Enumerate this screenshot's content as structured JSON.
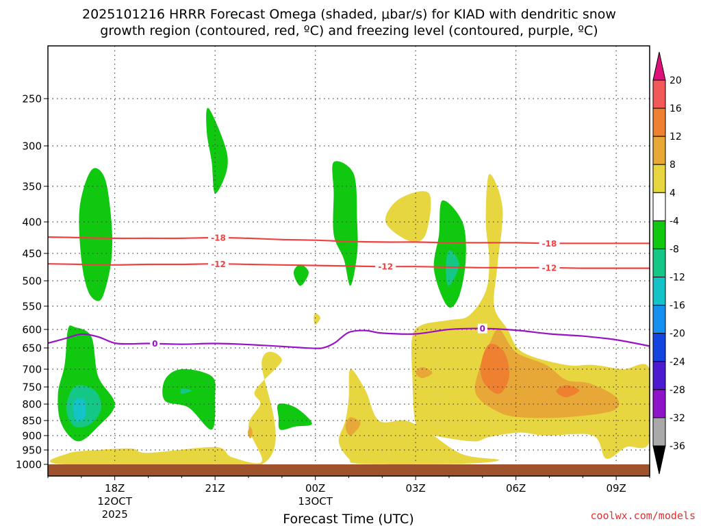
{
  "chart_data": {
    "type": "contour",
    "title_line1": "2025101216 HRRR Forecast Omega (shaded, μbar/s) for KIAD with dendritic snow",
    "title_line2": "growth region (contoured, red, ºC) and freezing level (contoured, purple, ºC)",
    "xlabel": "Forecast Time (UTC)",
    "x_ticks": [
      {
        "hour": 18,
        "label": "18Z",
        "sub1": "12OCT",
        "sub2": "2025"
      },
      {
        "hour": 21,
        "label": "21Z"
      },
      {
        "hour": 24,
        "label": "00Z",
        "sub1": "13OCT"
      },
      {
        "hour": 27,
        "label": "03Z"
      },
      {
        "hour": 30,
        "label": "06Z"
      },
      {
        "hour": 33,
        "label": "09Z"
      }
    ],
    "x_range_hours": [
      16,
      34
    ],
    "y_levels": [
      250,
      300,
      350,
      400,
      450,
      500,
      550,
      600,
      650,
      700,
      750,
      800,
      850,
      900,
      950,
      1000
    ],
    "y_range_mb": [
      200,
      1020
    ],
    "colorbar": {
      "labels": [
        "20",
        "16",
        "12",
        "8",
        "4",
        "-4",
        "-8",
        "-12",
        "-16",
        "-20",
        "-24",
        "-28",
        "-32",
        "-36"
      ],
      "colors": [
        "#f25a5a",
        "#ee8030",
        "#e7a838",
        "#e8d640",
        "#ffffff",
        "#0fc80f",
        "#15c786",
        "#14c3c8",
        "#1590f0",
        "#1545e0",
        "#4c1ad0",
        "#8f13c8",
        "#a9a9a9"
      ],
      "top_arrow_color": "#e0107a",
      "bottom_arrow_color": "#000000"
    },
    "colors": {
      "ground": "#a0522d",
      "dgz_line": "#f04040",
      "freezing_line": "#9a10c8",
      "grid": "#444444"
    },
    "dgz_contours": [
      {
        "label": "-18",
        "points": [
          [
            16,
            424
          ],
          [
            17,
            425
          ],
          [
            18,
            426
          ],
          [
            19,
            426
          ],
          [
            20,
            426
          ],
          [
            21,
            425
          ],
          [
            22,
            426
          ],
          [
            23,
            428
          ],
          [
            24,
            429
          ],
          [
            25,
            431
          ],
          [
            26,
            432
          ],
          [
            27,
            432
          ],
          [
            28,
            433
          ],
          [
            29,
            433
          ],
          [
            30,
            433
          ],
          [
            31,
            434
          ],
          [
            32,
            434
          ],
          [
            33,
            434
          ],
          [
            34,
            434
          ]
        ],
        "label_hours": [
          21.1,
          31.0
        ]
      },
      {
        "label": "-12",
        "points": [
          [
            16,
            469
          ],
          [
            17,
            470
          ],
          [
            18,
            471
          ],
          [
            19,
            470
          ],
          [
            20,
            470
          ],
          [
            21,
            469
          ],
          [
            22,
            470
          ],
          [
            23,
            471
          ],
          [
            24,
            472
          ],
          [
            25,
            473
          ],
          [
            26,
            474
          ],
          [
            27,
            474
          ],
          [
            28,
            475
          ],
          [
            29,
            476
          ],
          [
            30,
            476
          ],
          [
            31,
            476
          ],
          [
            32,
            477
          ],
          [
            33,
            477
          ],
          [
            34,
            477
          ]
        ],
        "label_hours": [
          21.1,
          26.1,
          31.0
        ]
      }
    ],
    "freezing_contour": {
      "label": "0",
      "points": [
        [
          16,
          637
        ],
        [
          16.5,
          625
        ],
        [
          17,
          613
        ],
        [
          17.5,
          620
        ],
        [
          18,
          637
        ],
        [
          18.5,
          639
        ],
        [
          19,
          638
        ],
        [
          20,
          640
        ],
        [
          21,
          638
        ],
        [
          22,
          641
        ],
        [
          23,
          646
        ],
        [
          24,
          651
        ],
        [
          24.3,
          648
        ],
        [
          24.6,
          635
        ],
        [
          25,
          608
        ],
        [
          25.5,
          603
        ],
        [
          26,
          610
        ],
        [
          27,
          612
        ],
        [
          28,
          600
        ],
        [
          29,
          598
        ],
        [
          30,
          602
        ],
        [
          31,
          612
        ],
        [
          32,
          618
        ],
        [
          33,
          628
        ],
        [
          34,
          645
        ]
      ],
      "label_hours": [
        19.2,
        29.0
      ]
    },
    "omega_regions": [
      {
        "value": -6,
        "points": [
          [
            17.3,
            330
          ],
          [
            17.7,
            340
          ],
          [
            17.9,
            400
          ],
          [
            17.9,
            460
          ],
          [
            17.7,
            520
          ],
          [
            17.5,
            540
          ],
          [
            17.2,
            520
          ],
          [
            17.0,
            460
          ],
          [
            16.95,
            380
          ]
        ]
      },
      {
        "value": -6,
        "points": [
          [
            20.8,
            260
          ],
          [
            21.3,
            300
          ],
          [
            21.35,
            330
          ],
          [
            21.0,
            360
          ],
          [
            20.9,
            320
          ],
          [
            20.75,
            285
          ]
        ]
      },
      {
        "value": -6,
        "points": [
          [
            23.55,
            470
          ],
          [
            23.8,
            485
          ],
          [
            23.55,
            510
          ],
          [
            23.35,
            485
          ]
        ]
      },
      {
        "value": -6,
        "points": [
          [
            24.55,
            320
          ],
          [
            25.15,
            335
          ],
          [
            25.25,
            400
          ],
          [
            25.25,
            450
          ],
          [
            25.05,
            510
          ],
          [
            24.85,
            460
          ],
          [
            24.55,
            420
          ],
          [
            24.55,
            360
          ]
        ]
      },
      {
        "value": -6,
        "points": [
          [
            27.8,
            370
          ],
          [
            28.4,
            400
          ],
          [
            28.5,
            460
          ],
          [
            28.3,
            530
          ],
          [
            27.95,
            550
          ],
          [
            27.55,
            480
          ],
          [
            27.7,
            420
          ]
        ]
      },
      {
        "value": -6,
        "points": [
          [
            16.6,
            600
          ],
          [
            16.8,
            595
          ],
          [
            17.3,
            620
          ],
          [
            17.5,
            720
          ],
          [
            18.0,
            800
          ],
          [
            17.5,
            870
          ],
          [
            16.9,
            920
          ],
          [
            16.4,
            860
          ],
          [
            16.3,
            770
          ],
          [
            16.5,
            690
          ]
        ]
      },
      {
        "value": -6,
        "points": [
          [
            19.5,
            730
          ],
          [
            20.0,
            700
          ],
          [
            20.9,
            720
          ],
          [
            21.0,
            780
          ],
          [
            20.9,
            880
          ],
          [
            20.2,
            810
          ],
          [
            19.5,
            790
          ]
        ]
      },
      {
        "value": -6,
        "points": [
          [
            22.9,
            800
          ],
          [
            23.4,
            810
          ],
          [
            23.9,
            860
          ],
          [
            23.4,
            870
          ],
          [
            22.95,
            880
          ],
          [
            22.9,
            840
          ]
        ]
      },
      {
        "value": -10,
        "points": [
          [
            28.0,
            445
          ],
          [
            28.3,
            470
          ],
          [
            28.0,
            510
          ],
          [
            27.9,
            480
          ]
        ]
      },
      {
        "value": -10,
        "points": [
          [
            16.9,
            745
          ],
          [
            17.4,
            760
          ],
          [
            17.6,
            810
          ],
          [
            17.3,
            860
          ],
          [
            16.8,
            870
          ],
          [
            16.55,
            820
          ],
          [
            16.65,
            770
          ]
        ]
      },
      {
        "value": -10,
        "points": [
          [
            20.0,
            755
          ],
          [
            20.3,
            760
          ],
          [
            20.0,
            770
          ]
        ]
      },
      {
        "value": -14,
        "points": [
          [
            16.85,
            785
          ],
          [
            17.1,
            790
          ],
          [
            17.1,
            840
          ],
          [
            16.85,
            850
          ],
          [
            16.75,
            810
          ]
        ]
      },
      {
        "value": 6,
        "points": [
          [
            24.0,
            565
          ],
          [
            24.15,
            575
          ],
          [
            24.0,
            590
          ],
          [
            23.95,
            577
          ]
        ]
      },
      {
        "value": 6,
        "points": [
          [
            26.1,
            400
          ],
          [
            26.5,
            368
          ],
          [
            27.4,
            360
          ],
          [
            27.3,
            420
          ],
          [
            26.8,
            430
          ]
        ]
      },
      {
        "value": 6,
        "points": [
          [
            29.1,
            400
          ],
          [
            29.2,
            335
          ],
          [
            29.6,
            380
          ],
          [
            29.45,
            470
          ],
          [
            29.35,
            550
          ],
          [
            29.75,
            600
          ],
          [
            30.2,
            660
          ],
          [
            31.5,
            690
          ],
          [
            32.3,
            690
          ],
          [
            33.2,
            700
          ],
          [
            34,
            700
          ],
          [
            34,
            920
          ],
          [
            33.3,
            940
          ],
          [
            32.7,
            980
          ],
          [
            32.3,
            900
          ],
          [
            30.9,
            900
          ],
          [
            30.1,
            890
          ],
          [
            29.2,
            905
          ],
          [
            28.7,
            920
          ],
          [
            27.4,
            895
          ],
          [
            27.0,
            860
          ],
          [
            26.9,
            720
          ],
          [
            26.9,
            620
          ],
          [
            27.2,
            590
          ],
          [
            28.0,
            580
          ],
          [
            28.6,
            570
          ],
          [
            29.1,
            520
          ],
          [
            29.2,
            460
          ]
        ]
      },
      {
        "value": 6,
        "points": [
          [
            22.4,
            680
          ],
          [
            23.0,
            680
          ],
          [
            22.2,
            760
          ],
          [
            22.35,
            800
          ],
          [
            22.0,
            870
          ],
          [
            22.4,
            990
          ],
          [
            21.5,
            975
          ],
          [
            21.0,
            940
          ],
          [
            19.0,
            960
          ],
          [
            18.5,
            945
          ],
          [
            17.5,
            950
          ],
          [
            16.6,
            962
          ],
          [
            16.5,
            1000
          ],
          [
            22.4,
            1000
          ]
        ]
      },
      {
        "value": 6,
        "points": [
          [
            25.05,
            700
          ],
          [
            25.5,
            760
          ],
          [
            25.9,
            850
          ],
          [
            26.7,
            850
          ],
          [
            27.4,
            890
          ],
          [
            28.4,
            965
          ],
          [
            29.5,
            985
          ],
          [
            28.3,
            998
          ],
          [
            25.4,
            998
          ],
          [
            25.0,
            980
          ],
          [
            24.7,
            920
          ],
          [
            24.9,
            850
          ],
          [
            25.0,
            780
          ]
        ]
      },
      {
        "value": 10,
        "points": [
          [
            29.5,
            600
          ],
          [
            30.0,
            660
          ],
          [
            30.9,
            690
          ],
          [
            31.5,
            730
          ],
          [
            32.2,
            740
          ],
          [
            33.0,
            780
          ],
          [
            32.9,
            820
          ],
          [
            31.5,
            840
          ],
          [
            30.1,
            840
          ],
          [
            29.4,
            820
          ],
          [
            28.8,
            770
          ],
          [
            28.9,
            700
          ],
          [
            29.2,
            640
          ]
        ]
      },
      {
        "value": 10,
        "points": [
          [
            27.2,
            695
          ],
          [
            27.5,
            710
          ],
          [
            27.2,
            725
          ],
          [
            27.0,
            710
          ]
        ]
      },
      {
        "value": 10,
        "points": [
          [
            25.05,
            840
          ],
          [
            25.35,
            860
          ],
          [
            25.05,
            900
          ],
          [
            24.9,
            870
          ]
        ]
      },
      {
        "value": 10,
        "points": [
          [
            22.05,
            870
          ],
          [
            22.12,
            890
          ],
          [
            22.05,
            910
          ],
          [
            21.98,
            890
          ]
        ]
      },
      {
        "value": 14,
        "points": [
          [
            29.2,
            640
          ],
          [
            29.65,
            660
          ],
          [
            29.8,
            720
          ],
          [
            29.5,
            770
          ],
          [
            29.05,
            740
          ],
          [
            28.95,
            690
          ]
        ]
      },
      {
        "value": 14,
        "points": [
          [
            31.5,
            745
          ],
          [
            31.9,
            760
          ],
          [
            31.5,
            780
          ],
          [
            31.2,
            762
          ]
        ]
      }
    ]
  },
  "watermark": "coolwx.com/models"
}
